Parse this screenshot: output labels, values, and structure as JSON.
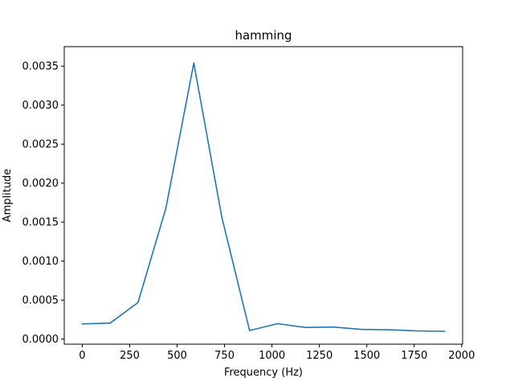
{
  "chart_data": {
    "type": "line",
    "title": "hamming",
    "xlabel": "Frequency (Hz)",
    "ylabel": "Amplitude",
    "xlim": [
      -95,
      2005
    ],
    "ylim": [
      -6.5e-05,
      0.00375
    ],
    "xticks": [
      0,
      250,
      500,
      750,
      1000,
      1250,
      1500,
      1750,
      2000
    ],
    "xtick_labels": [
      "0",
      "250",
      "500",
      "750",
      "1000",
      "1250",
      "1500",
      "1750",
      "2000"
    ],
    "yticks": [
      0,
      0.0005,
      0.001,
      0.0015,
      0.002,
      0.0025,
      0.003,
      0.0035
    ],
    "ytick_labels": [
      "0.0000",
      "0.0005",
      "0.0010",
      "0.0015",
      "0.0020",
      "0.0025",
      "0.0030",
      "0.0035"
    ],
    "grid": false,
    "series": [
      {
        "color": "#1f77b4",
        "x": [
          0,
          147,
          294,
          441,
          588,
          735,
          882,
          1029,
          1176,
          1323,
          1470,
          1617,
          1764,
          1911
        ],
        "y": [
          0.000195,
          0.000205,
          0.00047,
          0.00168,
          0.00354,
          0.00157,
          0.00011,
          0.000198,
          0.00015,
          0.000155,
          0.000125,
          0.00012,
          0.000105,
          0.0001
        ]
      }
    ]
  }
}
